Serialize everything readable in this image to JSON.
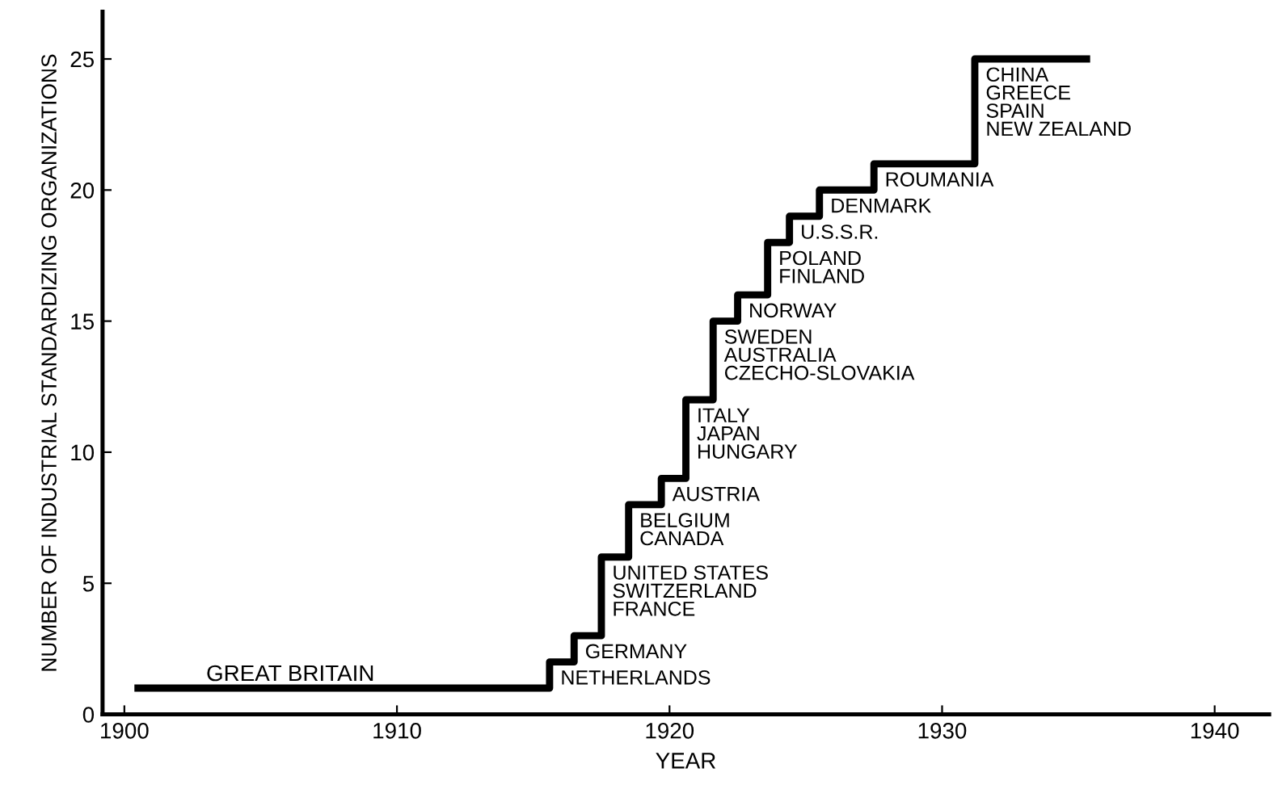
{
  "chart_data": {
    "type": "step",
    "xlabel": "YEAR",
    "ylabel": "NUMBER OF INDUSTRIAL STANDARDIZING ORGANIZATIONS",
    "x": [
      1900.5,
      1915.6,
      1916.5,
      1917.5,
      1918.5,
      1919.7,
      1920.6,
      1921.6,
      1922.5,
      1923.6,
      1924.4,
      1925.5,
      1927.5,
      1931.2,
      1935.3
    ],
    "series": [
      {
        "color": "#000000",
        "values": [
          1,
          2,
          3,
          6,
          8,
          9,
          12,
          15,
          16,
          18,
          19,
          20,
          21,
          25,
          25
        ]
      }
    ],
    "xlim": [
      1899.2,
      1942
    ],
    "xticks": [
      1900,
      1910,
      1920,
      1930,
      1940
    ],
    "ylim": [
      0,
      26.8
    ],
    "yticks": [
      0,
      5,
      10,
      15,
      20,
      25
    ],
    "grid": false,
    "legend": false,
    "marker": "none",
    "line_style": "solid",
    "annotations": [
      {
        "text": "GREAT BRITAIN",
        "x": 1903,
        "y": 1
      },
      {
        "text": "NETHERLANDS",
        "x": 1915.6,
        "y": 2
      },
      {
        "text": "GERMANY",
        "x": 1916.5,
        "y": 3
      },
      {
        "text": "UNITED STATES\nSWITZERLAND\nFRANCE",
        "x": 1917.5,
        "y": 6
      },
      {
        "text": "BELGIUM\nCANADA",
        "x": 1918.5,
        "y": 8
      },
      {
        "text": "AUSTRIA",
        "x": 1919.7,
        "y": 9
      },
      {
        "text": "ITALY\nJAPAN\nHUNGARY",
        "x": 1920.6,
        "y": 12
      },
      {
        "text": "SWEDEN\nAUSTRALIA\nCZECHO-SLOVAKIA",
        "x": 1921.6,
        "y": 15
      },
      {
        "text": "NORWAY",
        "x": 1922.5,
        "y": 16
      },
      {
        "text": "POLAND\nFINLAND",
        "x": 1923.6,
        "y": 18
      },
      {
        "text": "U.S.S.R.",
        "x": 1924.4,
        "y": 19
      },
      {
        "text": "DENMARK",
        "x": 1925.5,
        "y": 20
      },
      {
        "text": "ROUMANIA",
        "x": 1927.5,
        "y": 21
      },
      {
        "text": "CHINA\nGREECE\nSPAIN\nNEW ZEALAND",
        "x": 1931.2,
        "y": 25
      }
    ]
  }
}
